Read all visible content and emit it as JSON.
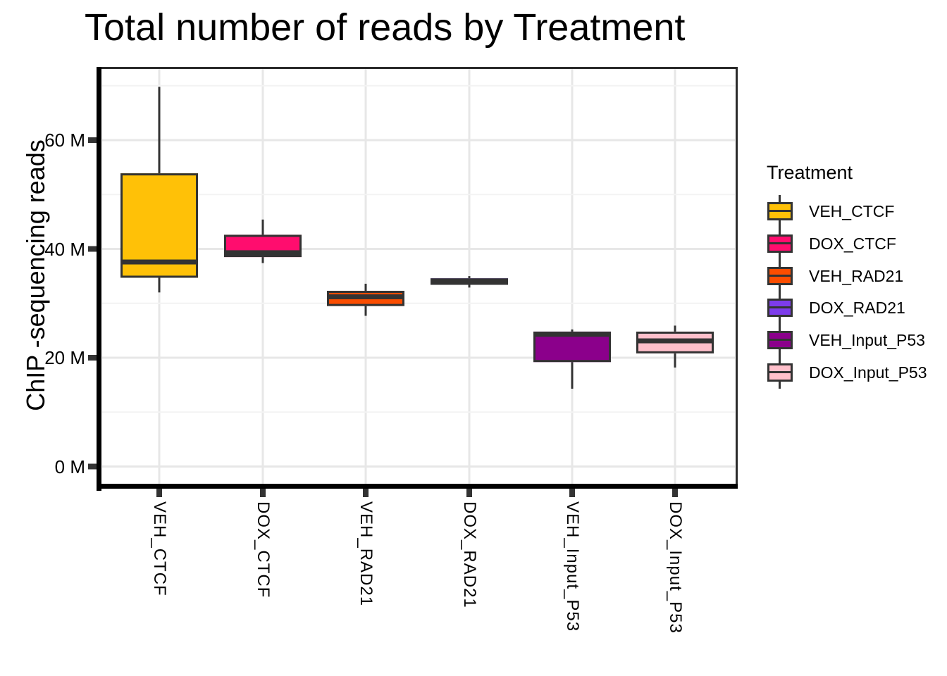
{
  "title": "Total number of reads by Treatment",
  "y_axis": {
    "label": "ChIP -sequencing reads",
    "tick_labels": [
      "60 M",
      "40 M",
      "20 M",
      "0 M"
    ],
    "tick_values": [
      60,
      40,
      20,
      0
    ]
  },
  "x_axis": {
    "categories": [
      "VEH_CTCF",
      "DOX_CTCF",
      "VEH_RAD21",
      "DOX_RAD21",
      "VEH_Input_P53",
      "DOX_Input_P53"
    ]
  },
  "legend": {
    "title": "Treatment",
    "entries": [
      {
        "label": "VEH_CTCF",
        "color": "#FFC107"
      },
      {
        "label": "DOX_CTCF",
        "color": "#FF0D6E"
      },
      {
        "label": "VEH_RAD21",
        "color": "#FB4D00"
      },
      {
        "label": "DOX_RAD21",
        "color": "#7D3CEB"
      },
      {
        "label": "VEH_Input_P53",
        "color": "#8B008B"
      },
      {
        "label": "DOX_Input_P53",
        "color": "#FFC0CB"
      }
    ]
  },
  "chart_data": {
    "type": "box",
    "title": "Total number of reads by Treatment",
    "xlabel": "",
    "ylabel": "ChIP -sequencing reads",
    "unit": "M",
    "ylim": [
      -3,
      73
    ],
    "y_ticks": [
      0,
      20,
      40,
      60
    ],
    "y_tick_labels": [
      "0 M",
      "20 M",
      "40 M",
      "60 M"
    ],
    "y_minor_ticks": [
      10,
      30,
      50,
      70
    ],
    "grid": true,
    "legend_position": "right",
    "legend_title": "Treatment",
    "categories": [
      "VEH_CTCF",
      "DOX_CTCF",
      "VEH_RAD21",
      "DOX_RAD21",
      "VEH_Input_P53",
      "DOX_Input_P53"
    ],
    "series": [
      {
        "name": "VEH_CTCF",
        "color": "#FFC107",
        "min": 32.0,
        "q1": 34.7,
        "median": 37.6,
        "q3": 53.9,
        "max": 69.8
      },
      {
        "name": "DOX_CTCF",
        "color": "#FF0D6E",
        "min": 37.4,
        "q1": 38.5,
        "median": 39.3,
        "q3": 42.6,
        "max": 45.4
      },
      {
        "name": "VEH_RAD21",
        "color": "#FB4D00",
        "min": 27.7,
        "q1": 29.5,
        "median": 31.2,
        "q3": 32.3,
        "max": 33.6
      },
      {
        "name": "DOX_RAD21",
        "color": "#7D3CEB",
        "min": 32.9,
        "q1": 33.4,
        "median": 33.9,
        "q3": 34.6,
        "max": 35.0
      },
      {
        "name": "VEH_Input_P53",
        "color": "#8B008B",
        "min": 14.3,
        "q1": 19.2,
        "median": 24.3,
        "q3": 24.8,
        "max": 25.2
      },
      {
        "name": "DOX_Input_P53",
        "color": "#FFC0CB",
        "min": 18.2,
        "q1": 20.8,
        "median": 23.1,
        "q3": 24.8,
        "max": 25.9
      }
    ]
  }
}
